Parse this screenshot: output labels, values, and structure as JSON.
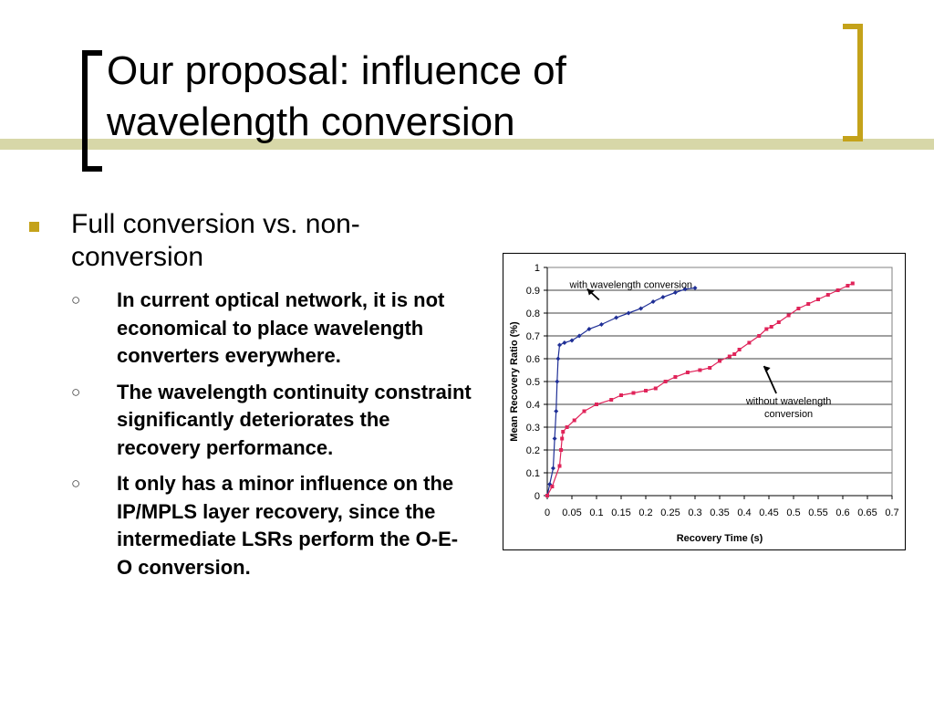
{
  "slide": {
    "title_line1": "Our proposal: influence of",
    "title_line2": "wavelength conversion",
    "main_bullet": "Full conversion vs. non-conversion",
    "sub_bullets": [
      "In current optical network, it is not economical to place wavelength converters everywhere.",
      "The wavelength continuity constraint significantly deteriorates the recovery performance.",
      "It only has a minor influence on the IP/MPLS layer recovery, since the intermediate LSRs perform the O-E-O conversion."
    ],
    "sub_bullet_marker": "○"
  },
  "colors": {
    "accent_gold": "#c4a21a",
    "rule": "#d7d7a8",
    "series_with": "#1f2f96",
    "series_without": "#e0245a"
  },
  "chart_data": {
    "type": "line",
    "xlabel": "Recovery Time (s)",
    "ylabel": "Mean Recovery Ratio (%)",
    "xlim": [
      0,
      0.7
    ],
    "ylim": [
      0,
      1
    ],
    "xticks": [
      "0",
      "0.05",
      "0.1",
      "0.15",
      "0.2",
      "0.25",
      "0.3",
      "0.35",
      "0.4",
      "0.45",
      "0.5",
      "0.55",
      "0.6",
      "0.65",
      "0.7"
    ],
    "yticks": [
      "0",
      "0.1",
      "0.2",
      "0.3",
      "0.4",
      "0.5",
      "0.6",
      "0.7",
      "0.8",
      "0.9",
      "1"
    ],
    "grid": "horizontal",
    "series": [
      {
        "key": "with",
        "points": [
          [
            0,
            0
          ],
          [
            0.005,
            0.05
          ],
          [
            0.012,
            0.12
          ],
          [
            0.015,
            0.25
          ],
          [
            0.018,
            0.37
          ],
          [
            0.02,
            0.5
          ],
          [
            0.022,
            0.6
          ],
          [
            0.025,
            0.66
          ],
          [
            0.035,
            0.67
          ],
          [
            0.05,
            0.68
          ],
          [
            0.065,
            0.7
          ],
          [
            0.085,
            0.73
          ],
          [
            0.11,
            0.75
          ],
          [
            0.14,
            0.78
          ],
          [
            0.165,
            0.8
          ],
          [
            0.19,
            0.82
          ],
          [
            0.215,
            0.85
          ],
          [
            0.235,
            0.87
          ],
          [
            0.26,
            0.89
          ],
          [
            0.28,
            0.905
          ],
          [
            0.3,
            0.91
          ]
        ]
      },
      {
        "key": "without",
        "points": [
          [
            0,
            0
          ],
          [
            0.01,
            0.04
          ],
          [
            0.025,
            0.13
          ],
          [
            0.028,
            0.2
          ],
          [
            0.03,
            0.25
          ],
          [
            0.032,
            0.28
          ],
          [
            0.04,
            0.3
          ],
          [
            0.055,
            0.33
          ],
          [
            0.075,
            0.37
          ],
          [
            0.1,
            0.4
          ],
          [
            0.13,
            0.42
          ],
          [
            0.15,
            0.44
          ],
          [
            0.175,
            0.45
          ],
          [
            0.2,
            0.46
          ],
          [
            0.22,
            0.47
          ],
          [
            0.24,
            0.5
          ],
          [
            0.26,
            0.52
          ],
          [
            0.285,
            0.54
          ],
          [
            0.31,
            0.55
          ],
          [
            0.33,
            0.56
          ],
          [
            0.35,
            0.59
          ],
          [
            0.37,
            0.61
          ],
          [
            0.38,
            0.62
          ],
          [
            0.39,
            0.64
          ],
          [
            0.41,
            0.67
          ],
          [
            0.43,
            0.7
          ],
          [
            0.445,
            0.73
          ],
          [
            0.455,
            0.74
          ],
          [
            0.47,
            0.76
          ],
          [
            0.49,
            0.79
          ],
          [
            0.51,
            0.82
          ],
          [
            0.53,
            0.84
          ],
          [
            0.55,
            0.86
          ],
          [
            0.57,
            0.88
          ],
          [
            0.59,
            0.9
          ],
          [
            0.61,
            0.92
          ],
          [
            0.62,
            0.93
          ]
        ]
      }
    ],
    "annotations": [
      {
        "text": "with wavelength conversion",
        "lines": [
          "with wavelength conversion"
        ],
        "x": 0.075,
        "y": 0.93
      },
      {
        "text": "without wavelength conversion",
        "lines": [
          "without wavelength",
          "conversion"
        ],
        "x": 0.45,
        "y": 0.4
      }
    ]
  }
}
